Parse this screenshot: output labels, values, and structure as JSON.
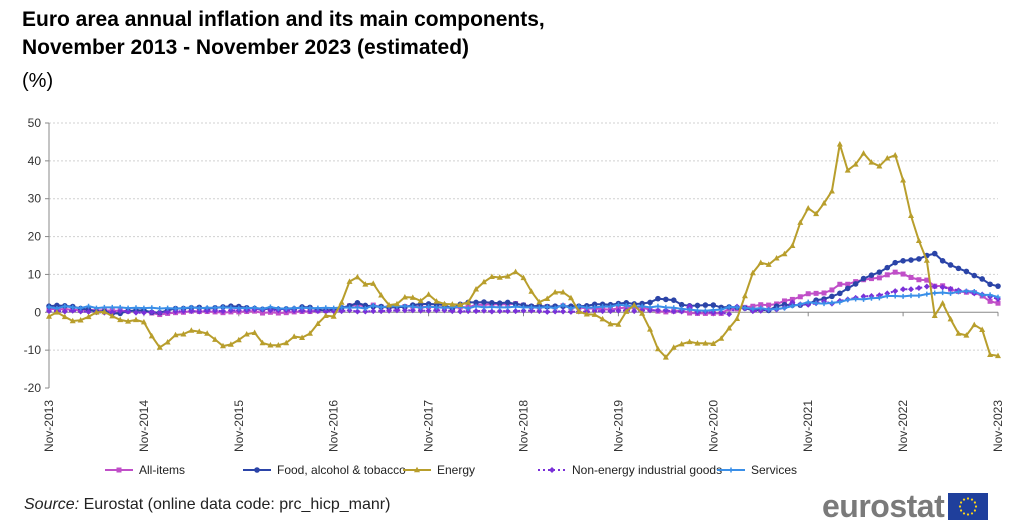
{
  "title_line1": "Euro area annual inflation and its main components,",
  "title_line2": "November 2013 - November 2023 (estimated)",
  "unit": "(%)",
  "source_label": "Source:",
  "source_text": " Eurostat (online data code: prc_hicp_manr)",
  "logo_text": "eurostat",
  "chart_data": {
    "type": "line",
    "xlabel": "",
    "ylabel": "(%)",
    "ylim": [
      -20,
      50
    ],
    "yticks": [
      -20,
      -10,
      0,
      10,
      20,
      30,
      40,
      50
    ],
    "grid": true,
    "legend_position": "bottom",
    "x_start": "Nov-2013",
    "x_end": "Nov-2023",
    "x_frequency": "monthly",
    "xtick_labels": [
      "Nov-2013",
      "Nov-2014",
      "Nov-2015",
      "Nov-2016",
      "Nov-2017",
      "Nov-2018",
      "Nov-2019",
      "Nov-2020",
      "Nov-2021",
      "Nov-2022",
      "Nov-2023"
    ],
    "series": [
      {
        "name": "All-items",
        "color": "#c04fc8",
        "marker": "square",
        "dash": false,
        "values": [
          0.9,
          0.8,
          0.8,
          0.7,
          0.5,
          0.7,
          0.5,
          0.5,
          0.4,
          0.4,
          0.3,
          0.4,
          0.3,
          -0.2,
          -0.6,
          -0.3,
          -0.1,
          0.0,
          0.3,
          0.2,
          0.2,
          0.1,
          -0.1,
          0.1,
          0.1,
          0.2,
          0.3,
          -0.2,
          0.0,
          -0.2,
          -0.1,
          0.1,
          0.2,
          0.2,
          0.4,
          0.5,
          0.6,
          1.1,
          1.7,
          2.0,
          1.5,
          1.9,
          1.4,
          1.3,
          1.3,
          1.5,
          1.6,
          1.4,
          1.5,
          1.4,
          1.3,
          1.1,
          1.4,
          1.3,
          2.0,
          2.0,
          2.1,
          2.1,
          2.1,
          2.3,
          1.9,
          1.5,
          1.4,
          1.5,
          1.4,
          1.7,
          1.2,
          1.3,
          1.0,
          1.0,
          0.8,
          0.7,
          1.0,
          1.3,
          1.4,
          1.2,
          0.7,
          0.3,
          0.1,
          0.3,
          0.4,
          -0.2,
          -0.3,
          -0.3,
          -0.3,
          -0.3,
          0.9,
          0.9,
          1.3,
          1.6,
          2.0,
          1.9,
          2.2,
          3.0,
          3.4,
          4.1,
          4.9,
          5.0,
          5.1,
          5.9,
          7.4,
          7.4,
          8.1,
          8.6,
          8.9,
          9.1,
          9.9,
          10.6,
          10.1,
          9.2,
          8.6,
          8.5,
          6.9,
          7.0,
          6.1,
          5.5,
          5.3,
          5.2,
          4.3,
          2.9,
          2.4
        ]
      },
      {
        "name": "Food, alcohol & tobacco",
        "color": "#2b44a8",
        "marker": "circle",
        "dash": false,
        "values": [
          1.6,
          1.8,
          1.7,
          1.5,
          1.0,
          0.7,
          0.1,
          0.2,
          -0.3,
          -0.3,
          0.3,
          0.5,
          0.5,
          0.0,
          -0.1,
          0.5,
          1.0,
          1.0,
          1.2,
          1.3,
          0.9,
          1.2,
          1.4,
          1.6,
          1.5,
          1.2,
          1.0,
          0.8,
          1.0,
          0.8,
          0.9,
          0.9,
          1.4,
          1.3,
          0.7,
          0.4,
          0.7,
          1.2,
          1.7,
          2.5,
          1.8,
          1.5,
          1.5,
          1.3,
          1.4,
          1.4,
          1.9,
          2.2,
          2.2,
          2.1,
          1.9,
          1.0,
          2.1,
          2.6,
          2.6,
          2.7,
          2.5,
          2.4,
          2.6,
          2.2,
          1.9,
          1.6,
          1.7,
          1.5,
          1.6,
          1.6,
          1.6,
          1.6,
          1.7,
          2.1,
          2.1,
          2.0,
          2.3,
          2.5,
          2.2,
          2.3,
          2.6,
          3.6,
          3.4,
          3.2,
          2.0,
          1.7,
          1.8,
          1.9,
          1.9,
          1.3,
          1.4,
          1.3,
          1.1,
          0.5,
          0.6,
          0.5,
          1.6,
          2.0,
          1.9,
          1.9,
          2.2,
          3.2,
          3.5,
          4.2,
          5.0,
          6.3,
          7.5,
          8.9,
          9.8,
          10.6,
          11.8,
          13.1,
          13.6,
          13.8,
          14.1,
          15.0,
          15.5,
          13.6,
          12.5,
          11.6,
          10.8,
          9.7,
          8.8,
          7.4,
          6.9
        ]
      },
      {
        "name": "Energy",
        "color": "#b89e2c",
        "marker": "triangle",
        "dash": false,
        "values": [
          -1.1,
          0.0,
          -1.2,
          -2.3,
          -2.1,
          -1.2,
          0.0,
          0.1,
          -1.0,
          -2.0,
          -2.4,
          -2.0,
          -2.6,
          -6.3,
          -9.3,
          -7.9,
          -6.0,
          -5.8,
          -4.8,
          -5.1,
          -5.6,
          -7.2,
          -8.9,
          -8.5,
          -7.3,
          -5.8,
          -5.4,
          -8.1,
          -8.7,
          -8.7,
          -8.1,
          -6.4,
          -6.7,
          -5.6,
          -3.0,
          -0.9,
          -1.1,
          2.6,
          8.1,
          9.3,
          7.4,
          7.6,
          4.5,
          1.9,
          2.2,
          4.0,
          3.9,
          3.0,
          4.7,
          2.9,
          2.2,
          2.1,
          2.0,
          2.6,
          6.1,
          8.0,
          9.4,
          9.2,
          9.5,
          10.7,
          9.1,
          5.5,
          2.7,
          3.6,
          5.3,
          5.3,
          3.8,
          0.2,
          -0.5,
          -0.6,
          -1.8,
          -3.1,
          -3.2,
          0.2,
          1.9,
          -0.3,
          -4.5,
          -9.7,
          -11.9,
          -9.3,
          -8.4,
          -7.8,
          -8.2,
          -8.2,
          -8.3,
          -6.9,
          -4.2,
          -1.7,
          4.3,
          10.4,
          13.1,
          12.6,
          14.3,
          15.4,
          17.6,
          23.7,
          27.5,
          26.0,
          28.8,
          32.0,
          44.4,
          37.5,
          39.1,
          42.0,
          39.6,
          38.6,
          40.7,
          41.5,
          34.9,
          25.5,
          18.9,
          13.7,
          -0.9,
          2.4,
          -1.8,
          -5.6,
          -6.1,
          -3.3,
          -4.6,
          -11.2,
          -11.5
        ]
      },
      {
        "name": "Non-energy industrial goods",
        "color": "#7a30d8",
        "marker": "diamond",
        "dash": true,
        "values": [
          0.3,
          0.3,
          0.2,
          0.4,
          0.2,
          0.1,
          0.0,
          -0.1,
          0.0,
          0.3,
          0.2,
          -0.1,
          -0.1,
          0.1,
          -0.1,
          0.1,
          0.2,
          0.3,
          0.3,
          0.2,
          0.4,
          0.4,
          0.3,
          0.5,
          0.5,
          0.5,
          0.7,
          0.7,
          0.5,
          0.5,
          0.5,
          0.4,
          0.4,
          0.3,
          0.3,
          0.2,
          0.3,
          0.3,
          0.5,
          0.2,
          0.2,
          0.3,
          0.3,
          0.4,
          0.5,
          0.5,
          0.5,
          0.4,
          0.4,
          0.5,
          0.5,
          0.3,
          0.2,
          0.3,
          0.3,
          0.4,
          0.2,
          0.3,
          0.3,
          0.3,
          0.4,
          0.4,
          0.3,
          0.1,
          0.2,
          0.2,
          0.1,
          0.2,
          0.1,
          0.3,
          0.3,
          0.3,
          0.4,
          0.5,
          0.3,
          0.5,
          0.5,
          0.5,
          0.5,
          0.2,
          0.2,
          1.6,
          -0.1,
          0.1,
          -0.1,
          -0.1,
          -0.5,
          1.5,
          1.0,
          0.3,
          0.4,
          0.7,
          0.7,
          1.2,
          2.6,
          2.1,
          2.0,
          2.4,
          2.9,
          2.3,
          3.0,
          3.4,
          3.8,
          4.2,
          4.3,
          4.5,
          5.0,
          5.6,
          6.1,
          6.1,
          6.4,
          6.8,
          6.8,
          6.6,
          6.2,
          5.8,
          5.5,
          5.0,
          4.7,
          4.1,
          3.5
        ]
      },
      {
        "name": "Services",
        "color": "#3a8fe8",
        "marker": "star",
        "dash": false,
        "values": [
          1.4,
          1.0,
          1.6,
          1.3,
          1.1,
          1.6,
          1.1,
          1.3,
          1.3,
          1.3,
          1.1,
          1.2,
          1.1,
          1.2,
          1.0,
          1.1,
          1.0,
          1.1,
          1.3,
          1.1,
          1.2,
          1.2,
          1.3,
          1.2,
          1.1,
          1.1,
          1.2,
          0.9,
          1.4,
          1.0,
          1.0,
          1.1,
          1.2,
          1.1,
          1.1,
          1.2,
          1.1,
          1.3,
          1.2,
          1.3,
          1.0,
          1.8,
          1.3,
          1.6,
          1.6,
          1.6,
          1.5,
          1.2,
          1.5,
          1.3,
          1.2,
          1.3,
          1.5,
          1.0,
          1.6,
          1.3,
          1.4,
          1.3,
          1.3,
          1.5,
          1.3,
          1.3,
          1.2,
          1.4,
          1.1,
          1.9,
          1.0,
          1.6,
          1.2,
          1.3,
          1.5,
          1.5,
          2.0,
          1.8,
          1.5,
          1.6,
          1.3,
          1.6,
          1.3,
          1.2,
          0.9,
          0.7,
          0.5,
          0.4,
          0.6,
          0.7,
          1.4,
          1.3,
          1.2,
          0.9,
          1.1,
          0.7,
          0.9,
          1.1,
          1.7,
          2.1,
          2.7,
          2.4,
          2.3,
          2.5,
          2.7,
          3.3,
          3.5,
          3.4,
          3.7,
          3.8,
          4.3,
          4.3,
          4.2,
          4.4,
          4.4,
          4.8,
          5.1,
          5.2,
          5.0,
          5.4,
          5.6,
          5.5,
          4.6,
          4.6,
          4.0
        ]
      }
    ]
  }
}
